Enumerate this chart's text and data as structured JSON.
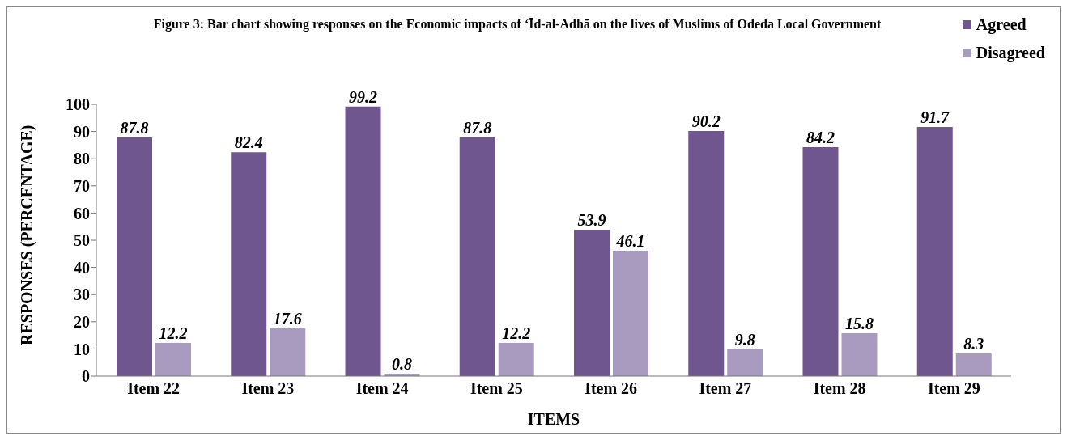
{
  "chart_data": {
    "type": "bar",
    "title": "Figure 3: Bar chart showing responses on the Economic impacts of ‘Īd-al-Adhā on the lives of Muslims of Odeda Local Government",
    "xlabel": "ITEMS",
    "ylabel": "RESPONSES (PERCENTAGE)",
    "categories": [
      "Item 22",
      "Item 23",
      "Item 24",
      "Item 25",
      "Item 26",
      "Item 27",
      "Item 28",
      "Item 29"
    ],
    "series": [
      {
        "name": "Agreed",
        "color": "#6f568f",
        "values": [
          87.8,
          82.4,
          99.2,
          87.8,
          53.9,
          90.2,
          84.2,
          91.7
        ]
      },
      {
        "name": "Disagreed",
        "color": "#a99bc0",
        "values": [
          12.2,
          17.6,
          0.8,
          12.2,
          46.1,
          9.8,
          15.8,
          8.3
        ]
      }
    ],
    "ylim": [
      0,
      100
    ],
    "yticks": [
      0,
      10,
      20,
      30,
      40,
      50,
      60,
      70,
      80,
      90,
      100
    ],
    "grid": false,
    "legend": "top right",
    "data_labels": true
  }
}
